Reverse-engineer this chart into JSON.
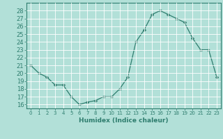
{
  "x": [
    0,
    1,
    2,
    3,
    4,
    5,
    6,
    7,
    8,
    9,
    10,
    11,
    12,
    13,
    14,
    15,
    16,
    17,
    18,
    19,
    20,
    21,
    22,
    23
  ],
  "y": [
    21,
    20,
    19.5,
    18.5,
    18.5,
    17,
    16,
    16.3,
    16.5,
    17,
    17,
    18,
    19.5,
    24,
    25.5,
    27.5,
    28,
    27.5,
    27,
    26.5,
    24.5,
    23,
    23,
    19.5
  ],
  "line_color": "#2e7d6e",
  "marker": "D",
  "marker_size": 2.2,
  "bg_color": "#b2e0d8",
  "grid_color": "#ffffff",
  "xlabel": "Humidex (Indice chaleur)",
  "ylim": [
    15.5,
    29
  ],
  "xlim": [
    -0.5,
    23.5
  ],
  "yticks": [
    16,
    17,
    18,
    19,
    20,
    21,
    22,
    23,
    24,
    25,
    26,
    27,
    28
  ],
  "xticks": [
    0,
    1,
    2,
    3,
    4,
    5,
    6,
    7,
    8,
    9,
    10,
    11,
    12,
    13,
    14,
    15,
    16,
    17,
    18,
    19,
    20,
    21,
    22,
    23
  ],
  "tick_color": "#2e7d6e",
  "label_color": "#2e7d6e"
}
